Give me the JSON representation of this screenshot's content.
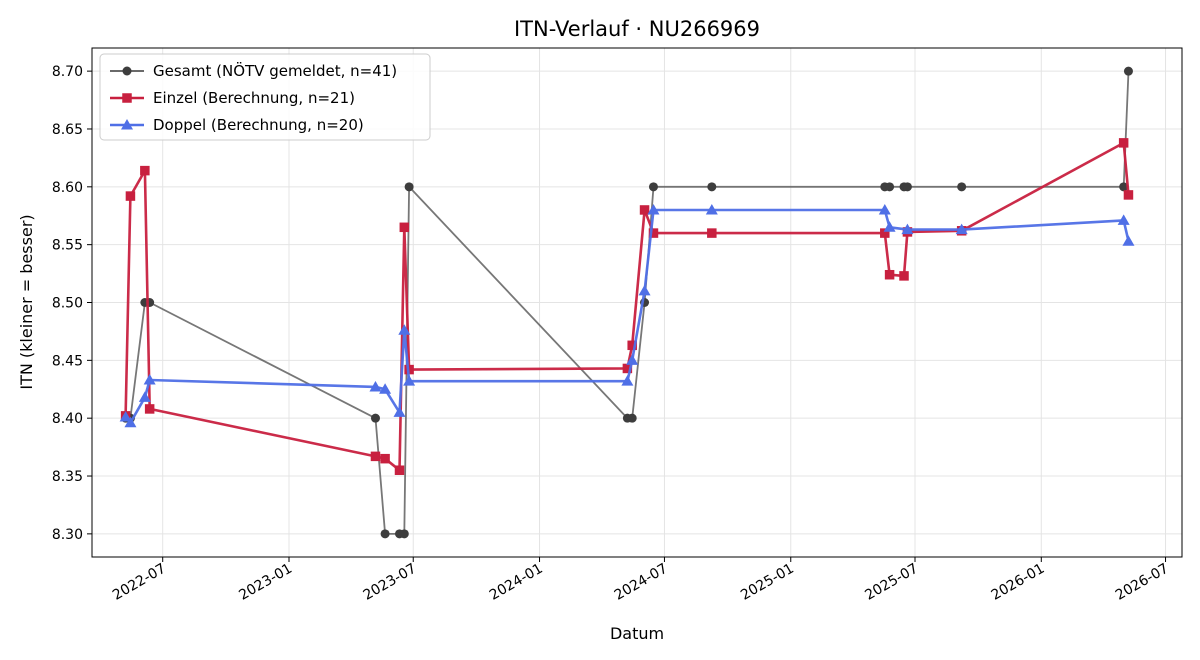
{
  "chart_data": {
    "type": "line",
    "title": "ITN-Verlauf · NU266969",
    "xlabel": "Datum",
    "ylabel": "ITN  (kleiner = besser)",
    "x_type": "date",
    "xlim": [
      "2022-03-20",
      "2026-07-25"
    ],
    "ylim": [
      8.28,
      8.72
    ],
    "x_ticks": [
      "2022-07-01",
      "2023-01-01",
      "2023-07-01",
      "2024-01-01",
      "2024-07-01",
      "2025-01-01",
      "2025-07-01",
      "2026-01-01",
      "2026-07-01"
    ],
    "x_tick_labels": [
      "2022-07",
      "2023-01",
      "2023-07",
      "2024-01",
      "2024-07",
      "2025-01",
      "2025-07",
      "2026-01",
      "2026-07"
    ],
    "y_ticks": [
      8.3,
      8.35,
      8.4,
      8.45,
      8.5,
      8.55,
      8.6,
      8.65,
      8.7
    ],
    "y_tick_labels": [
      "8.30",
      "8.35",
      "8.40",
      "8.45",
      "8.50",
      "8.55",
      "8.60",
      "8.65",
      "8.70"
    ],
    "grid": true,
    "legend_position": "top-left",
    "series": [
      {
        "name": "Gesamt (NÖTV gemeldet, n=41)",
        "color": "#555555",
        "marker": "circle",
        "points": [
          [
            "2022-05-08",
            8.4
          ],
          [
            "2022-05-15",
            8.4
          ],
          [
            "2022-06-05",
            8.5
          ],
          [
            "2022-06-12",
            8.5
          ],
          [
            "2023-05-07",
            8.4
          ],
          [
            "2023-05-21",
            8.3
          ],
          [
            "2023-06-11",
            8.3
          ],
          [
            "2023-06-18",
            8.3
          ],
          [
            "2023-06-25",
            8.6
          ],
          [
            "2024-05-08",
            8.4
          ],
          [
            "2024-05-15",
            8.4
          ],
          [
            "2024-06-02",
            8.5
          ],
          [
            "2024-06-15",
            8.6
          ],
          [
            "2024-09-08",
            8.6
          ],
          [
            "2025-05-18",
            8.6
          ],
          [
            "2025-05-25",
            8.6
          ],
          [
            "2025-06-15",
            8.6
          ],
          [
            "2025-06-20",
            8.6
          ],
          [
            "2025-09-07",
            8.6
          ],
          [
            "2026-05-01",
            8.6
          ],
          [
            "2026-05-08",
            8.7
          ]
        ]
      },
      {
        "name": "Einzel (Berechnung, n=21)",
        "color": "#c8203f",
        "marker": "square",
        "points": [
          [
            "2022-05-08",
            8.402
          ],
          [
            "2022-05-15",
            8.592
          ],
          [
            "2022-06-05",
            8.614
          ],
          [
            "2022-06-12",
            8.408
          ],
          [
            "2023-05-07",
            8.367
          ],
          [
            "2023-05-21",
            8.365
          ],
          [
            "2023-06-11",
            8.355
          ],
          [
            "2023-06-18",
            8.565
          ],
          [
            "2023-06-25",
            8.442
          ],
          [
            "2024-05-08",
            8.443
          ],
          [
            "2024-05-15",
            8.463
          ],
          [
            "2024-06-02",
            8.58
          ],
          [
            "2024-06-15",
            8.56
          ],
          [
            "2024-09-08",
            8.56
          ],
          [
            "2025-05-18",
            8.56
          ],
          [
            "2025-05-25",
            8.524
          ],
          [
            "2025-06-15",
            8.523
          ],
          [
            "2025-06-20",
            8.561
          ],
          [
            "2025-09-07",
            8.562
          ],
          [
            "2026-05-01",
            8.638
          ],
          [
            "2026-05-08",
            8.593
          ]
        ]
      },
      {
        "name": "Doppel (Berechnung, n=20)",
        "color": "#4f6fe6",
        "marker": "triangle",
        "points": [
          [
            "2022-05-08",
            8.401
          ],
          [
            "2022-05-15",
            8.396
          ],
          [
            "2022-06-05",
            8.418
          ],
          [
            "2022-06-12",
            8.433
          ],
          [
            "2023-05-07",
            8.427
          ],
          [
            "2023-05-21",
            8.425
          ],
          [
            "2023-06-11",
            8.405
          ],
          [
            "2023-06-18",
            8.476
          ],
          [
            "2023-06-25",
            8.432
          ],
          [
            "2024-05-08",
            8.432
          ],
          [
            "2024-05-15",
            8.45
          ],
          [
            "2024-06-02",
            8.51
          ],
          [
            "2024-06-15",
            8.58
          ],
          [
            "2024-09-08",
            8.58
          ],
          [
            "2025-05-18",
            8.58
          ],
          [
            "2025-05-25",
            8.565
          ],
          [
            "2025-06-20",
            8.563
          ],
          [
            "2025-09-07",
            8.563
          ],
          [
            "2026-05-01",
            8.571
          ],
          [
            "2026-05-08",
            8.553
          ]
        ]
      }
    ]
  }
}
